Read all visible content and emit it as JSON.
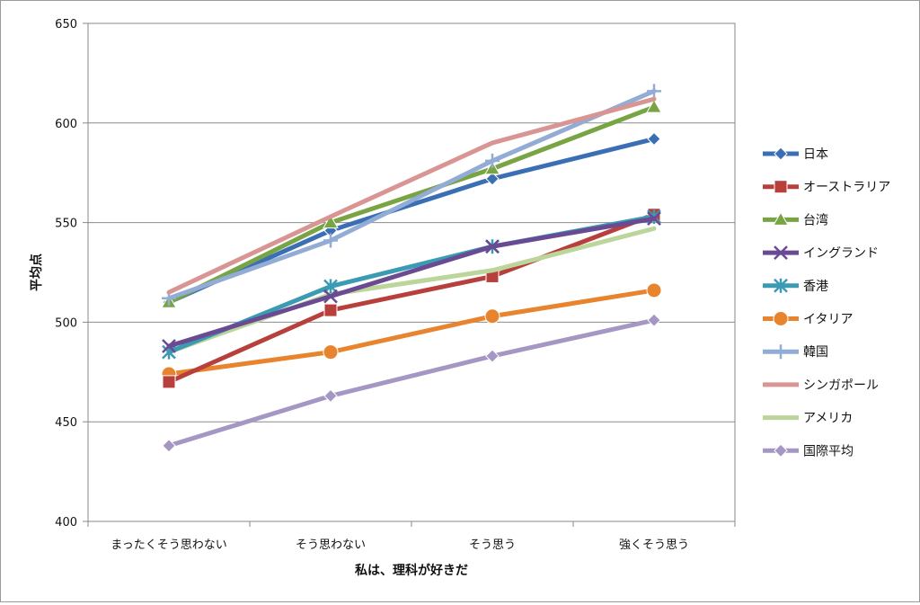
{
  "chart_data": {
    "type": "line",
    "title": "",
    "xlabel": "私は、理科が好きだ",
    "ylabel": "平均点",
    "ylim": [
      400,
      650
    ],
    "yticks": [
      400,
      450,
      500,
      550,
      600,
      650
    ],
    "grid": true,
    "legend_position": "right",
    "categories": [
      "まったくそう思わない",
      "そう思わない",
      "そう思う",
      "強くそう思う"
    ],
    "series": [
      {
        "name": "日本",
        "color": "#3b6fb5",
        "marker": "diamond",
        "values": [
          510,
          546,
          572,
          592
        ]
      },
      {
        "name": "オーストラリア",
        "color": "#b8403c",
        "marker": "square",
        "values": [
          470,
          506,
          523,
          554
        ]
      },
      {
        "name": "台湾",
        "color": "#78a443",
        "marker": "triangle",
        "values": [
          510,
          550,
          577,
          608
        ]
      },
      {
        "name": "イングランド",
        "color": "#6a4a93",
        "marker": "x",
        "values": [
          488,
          513,
          538,
          552
        ]
      },
      {
        "name": "香港",
        "color": "#3a9bb3",
        "marker": "star",
        "values": [
          485,
          518,
          538,
          553
        ]
      },
      {
        "name": "イタリア",
        "color": "#e8832e",
        "marker": "circle",
        "values": [
          474,
          485,
          503,
          516
        ]
      },
      {
        "name": "韓国",
        "color": "#93acd6",
        "marker": "plus",
        "values": [
          512,
          541,
          581,
          616
        ]
      },
      {
        "name": "シンガポール",
        "color": "#d99593",
        "marker": "none",
        "values": [
          515,
          553,
          590,
          612
        ]
      },
      {
        "name": "アメリカ",
        "color": "#bbd59a",
        "marker": "none",
        "values": [
          485,
          514,
          526,
          547
        ]
      },
      {
        "name": "国際平均",
        "color": "#a596c4",
        "marker": "diamond",
        "values": [
          438,
          463,
          483,
          501
        ]
      }
    ]
  }
}
